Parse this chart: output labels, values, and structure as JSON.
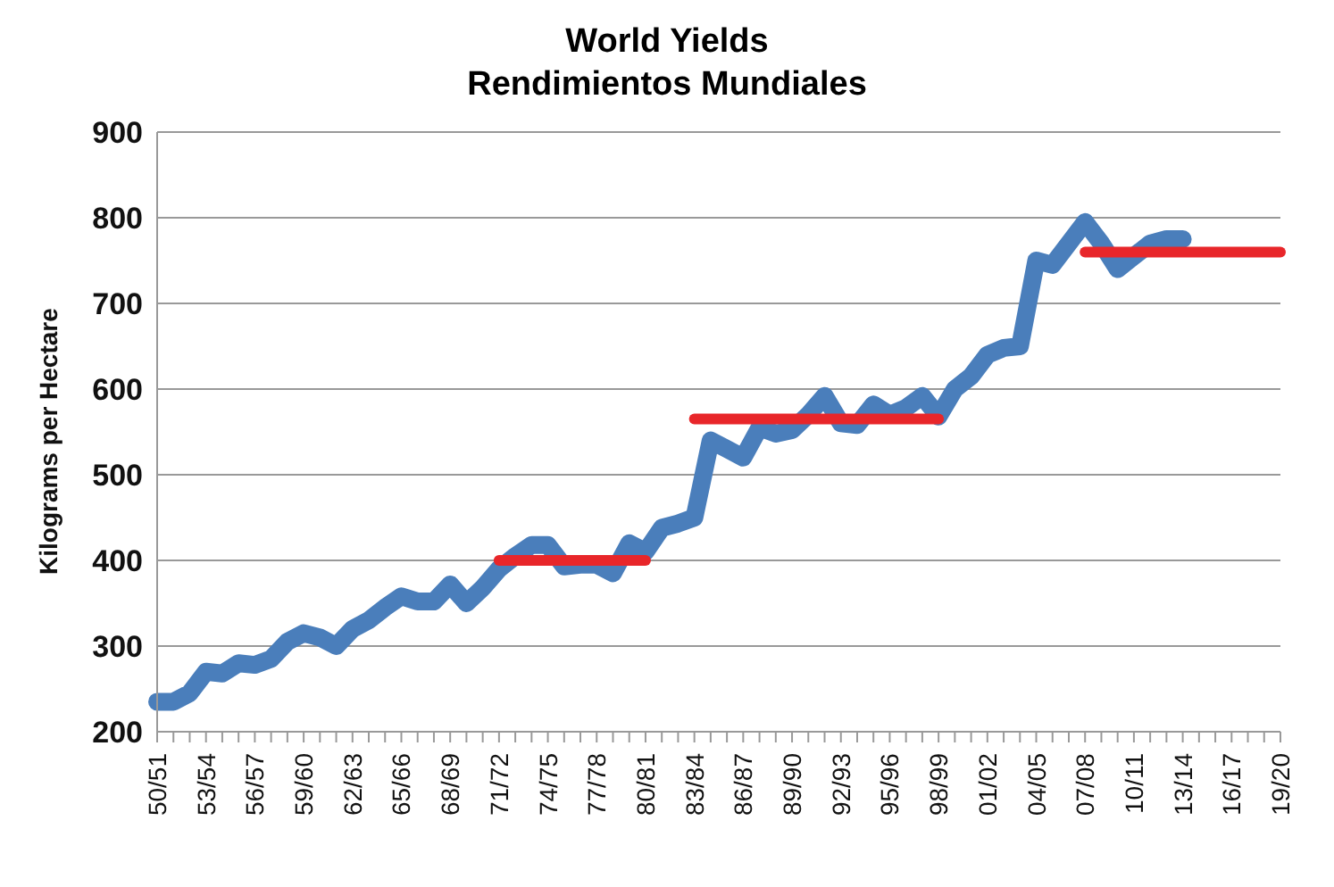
{
  "chart_data": {
    "type": "line",
    "title": "World Yields",
    "subtitle": "Rendimientos Mundiales",
    "ylabel": "Kilograms per Hectare",
    "categories": [
      "50/51",
      null,
      null,
      "53/54",
      null,
      null,
      "56/57",
      null,
      null,
      "59/60",
      null,
      null,
      "62/63",
      null,
      null,
      "65/66",
      null,
      null,
      "68/69",
      null,
      null,
      "71/72",
      null,
      null,
      "74/75",
      null,
      null,
      "77/78",
      null,
      null,
      "80/81",
      null,
      null,
      "83/84",
      null,
      null,
      "86/87",
      null,
      null,
      "89/90",
      null,
      null,
      "92/93",
      null,
      null,
      "95/96",
      null,
      null,
      "98/99",
      null,
      null,
      "01/02",
      null,
      null,
      "04/05",
      null,
      null,
      "07/08",
      null,
      null,
      "10/11",
      null,
      null,
      "13/14",
      null,
      null,
      "16/17",
      null,
      null,
      "19/20"
    ],
    "series": [
      {
        "color": "#4a7ebb",
        "values": [
          235,
          235,
          245,
          270,
          268,
          280,
          278,
          285,
          305,
          315,
          310,
          300,
          320,
          330,
          345,
          358,
          352,
          352,
          372,
          350,
          368,
          390,
          405,
          418,
          418,
          393,
          395,
          395,
          385,
          420,
          410,
          438,
          443,
          450,
          540,
          530,
          520,
          555,
          548,
          552,
          570,
          592,
          560,
          558,
          582,
          570,
          578,
          592,
          568,
          600,
          615,
          640,
          648,
          650,
          750,
          745,
          770,
          795,
          770,
          740,
          755,
          770,
          775,
          775,
          null,
          null,
          null,
          null,
          null,
          null
        ]
      },
      {
        "color": "#e8262a",
        "values": [
          null,
          null,
          null,
          null,
          null,
          null,
          null,
          null,
          null,
          null,
          null,
          null,
          null,
          null,
          null,
          null,
          null,
          null,
          null,
          null,
          null,
          400,
          400,
          400,
          400,
          400,
          400,
          400,
          400,
          400,
          400,
          null,
          null,
          null,
          null,
          null,
          null,
          null,
          null,
          null,
          null,
          null,
          null,
          null,
          null,
          null,
          null,
          null,
          null,
          null,
          null,
          null,
          null,
          null,
          null,
          null,
          null,
          null,
          null,
          null,
          null,
          null,
          null,
          null,
          null,
          null,
          null,
          null,
          null,
          null
        ]
      },
      {
        "color": "#e8262a",
        "values": [
          null,
          null,
          null,
          null,
          null,
          null,
          null,
          null,
          null,
          null,
          null,
          null,
          null,
          null,
          null,
          null,
          null,
          null,
          null,
          null,
          null,
          null,
          null,
          null,
          null,
          null,
          null,
          null,
          null,
          null,
          null,
          null,
          null,
          565,
          565,
          565,
          565,
          565,
          565,
          565,
          565,
          565,
          565,
          565,
          565,
          565,
          565,
          565,
          565,
          null,
          null,
          null,
          null,
          null,
          null,
          null,
          null,
          null,
          null,
          null,
          null,
          null,
          null,
          null,
          null,
          null,
          null,
          null,
          null,
          null
        ]
      },
      {
        "color": "#e8262a",
        "values": [
          null,
          null,
          null,
          null,
          null,
          null,
          null,
          null,
          null,
          null,
          null,
          null,
          null,
          null,
          null,
          null,
          null,
          null,
          null,
          null,
          null,
          null,
          null,
          null,
          null,
          null,
          null,
          null,
          null,
          null,
          null,
          null,
          null,
          null,
          null,
          null,
          null,
          null,
          null,
          null,
          null,
          null,
          null,
          null,
          null,
          null,
          null,
          null,
          null,
          null,
          null,
          null,
          null,
          null,
          null,
          null,
          null,
          760,
          760,
          760,
          760,
          760,
          760,
          760,
          760,
          760,
          760,
          760,
          760,
          760
        ]
      }
    ],
    "ylim": [
      200,
      900
    ],
    "yticks": [
      200,
      300,
      400,
      500,
      600,
      700,
      800,
      900
    ],
    "grid": "y",
    "marker": "none",
    "line_style": "solid"
  }
}
